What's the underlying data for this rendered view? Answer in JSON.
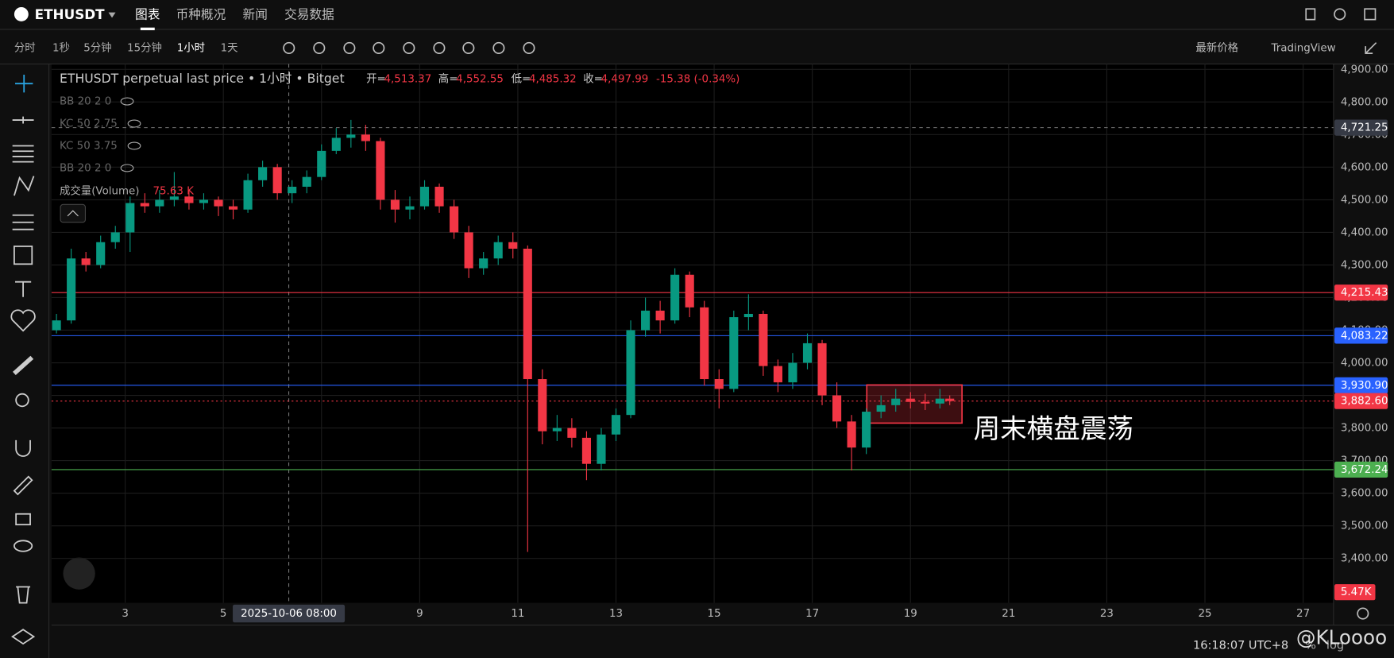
{
  "header": {
    "symbol": "ETHUSDT",
    "tabs": [
      "图表",
      "币种概况",
      "新闻",
      "交易数据"
    ]
  },
  "toolbar": {
    "intervals": [
      "分时",
      "1秒",
      "5分钟",
      "15分钟",
      "1小时",
      "1天"
    ],
    "price_source": "最新价格",
    "theme": "TradingView"
  },
  "legend": {
    "title": "ETHUSDT perpetual last price • 1小时 • Bitget",
    "ohlc": [
      {
        "label": "开=",
        "value": "4,513.37"
      },
      {
        "label": "高=",
        "value": "4,552.55"
      },
      {
        "label": "低=",
        "value": "4,485.32"
      },
      {
        "label": "收=",
        "value": "4,497.99"
      }
    ],
    "change": "-15.38 (-0.34%)",
    "indicators": [
      "BB 20 2 0",
      "KC 50 2.75",
      "KC 50 3.75",
      "BB 20 2 0"
    ],
    "volume_name": "成交量(Volume)",
    "volume_value": "75.63 K"
  },
  "chart_data": {
    "type": "candlestick",
    "x": [
      1.6,
      1.9,
      2.2,
      2.5,
      2.8,
      3.1,
      3.4,
      3.7,
      4.0,
      4.3,
      4.6,
      4.9,
      5.2,
      5.5,
      5.8,
      6.1,
      6.4,
      6.7,
      7.0,
      7.3,
      7.6,
      7.9,
      8.2,
      8.5,
      8.8,
      9.1,
      9.4,
      9.7,
      10.0,
      10.3,
      10.6,
      10.9,
      11.2,
      11.5,
      11.8,
      12.1,
      12.4,
      12.7,
      13.0,
      13.3,
      13.6,
      13.9,
      14.2,
      14.5,
      14.8,
      15.1,
      15.4,
      15.7,
      16.0,
      16.3,
      16.6,
      16.9,
      17.2,
      17.5,
      17.8,
      18.1,
      18.4,
      18.7,
      19.0,
      19.3,
      19.6,
      19.8
    ],
    "open": [
      4100,
      4130,
      4320,
      4300,
      4370,
      4400,
      4490,
      4480,
      4500,
      4510,
      4490,
      4500,
      4480,
      4470,
      4560,
      4600,
      4520,
      4540,
      4570,
      4650,
      4690,
      4700,
      4680,
      4500,
      4470,
      4480,
      4540,
      4480,
      4400,
      4290,
      4320,
      4370,
      4350,
      3950,
      3790,
      3800,
      3770,
      3690,
      3780,
      3840,
      4100,
      4160,
      4130,
      4270,
      4170,
      3950,
      3920,
      4140,
      4150,
      3990,
      3940,
      4000,
      4060,
      3900,
      3820,
      3740,
      3850,
      3870,
      3890,
      3880,
      3875,
      3890
    ],
    "high": [
      4150,
      4350,
      4340,
      4390,
      4420,
      4510,
      4520,
      4530,
      4585,
      4530,
      4520,
      4510,
      4500,
      4580,
      4620,
      4610,
      4560,
      4590,
      4670,
      4720,
      4745,
      4730,
      4690,
      4530,
      4510,
      4560,
      4550,
      4500,
      4420,
      4340,
      4390,
      4400,
      4360,
      3980,
      3840,
      3830,
      3790,
      3800,
      3860,
      4130,
      4200,
      4190,
      4290,
      4280,
      4190,
      3980,
      4160,
      4210,
      4160,
      4010,
      4030,
      4090,
      4070,
      3940,
      3840,
      3860,
      3900,
      3920,
      3910,
      3905,
      3920,
      3900
    ],
    "low": [
      4090,
      4120,
      4280,
      4290,
      4350,
      4340,
      4460,
      4460,
      4480,
      4470,
      4470,
      4450,
      4440,
      4460,
      4540,
      4500,
      4490,
      4520,
      4560,
      4640,
      4660,
      4650,
      4470,
      4430,
      4440,
      4470,
      4460,
      4380,
      4260,
      4270,
      4300,
      4320,
      3420,
      3750,
      3760,
      3740,
      3640,
      3670,
      3760,
      3830,
      4080,
      4090,
      4120,
      4140,
      3930,
      3860,
      3910,
      4100,
      3960,
      3910,
      3920,
      3980,
      3870,
      3800,
      3670,
      3720,
      3830,
      3850,
      3860,
      3855,
      3860,
      3870
    ],
    "close": [
      4130,
      4320,
      4300,
      4370,
      4400,
      4490,
      4480,
      4500,
      4510,
      4490,
      4500,
      4480,
      4470,
      4560,
      4600,
      4520,
      4540,
      4570,
      4650,
      4690,
      4700,
      4680,
      4500,
      4470,
      4480,
      4540,
      4480,
      4400,
      4290,
      4320,
      4370,
      4350,
      3950,
      3790,
      3800,
      3770,
      3690,
      3780,
      3840,
      4100,
      4160,
      4130,
      4270,
      4170,
      3950,
      3920,
      4140,
      4150,
      3990,
      3940,
      4000,
      4060,
      3900,
      3820,
      3740,
      3850,
      3870,
      3890,
      3880,
      3875,
      3890,
      3882.6
    ],
    "up_color": "#089981",
    "down_color": "#f23645",
    "xlim": [
      1.5,
      27.62
    ],
    "xticks": [
      3,
      5,
      7,
      9,
      11,
      13,
      15,
      17,
      19,
      21,
      23,
      25,
      27
    ],
    "ylim": [
      3263.6,
      4916.4
    ],
    "yticks": [
      {
        "value": 3400,
        "label": "3,400.00"
      },
      {
        "value": 3500,
        "label": "3,500.00"
      },
      {
        "value": 3600,
        "label": "3,600.00"
      },
      {
        "value": 3700,
        "label": "3,700.00"
      },
      {
        "value": 3800,
        "label": "3,800.00"
      },
      {
        "value": 3900,
        "label": "3,900.00"
      },
      {
        "value": 4000,
        "label": "4,000.00"
      },
      {
        "value": 4100,
        "label": "4,100.00"
      },
      {
        "value": 4200,
        "label": "4,200.00"
      },
      {
        "value": 4300,
        "label": "4,300.00"
      },
      {
        "value": 4400,
        "label": "4,400.00"
      },
      {
        "value": 4500,
        "label": "4,500.00"
      },
      {
        "value": 4600,
        "label": "4,600.00"
      },
      {
        "value": 4700,
        "label": "4,700.00"
      },
      {
        "value": 4800,
        "label": "4,800.00"
      },
      {
        "value": 4900,
        "label": "4,900.00"
      }
    ],
    "grid": true,
    "hlines": {
      "values": [
        4215.43,
        4083.22,
        3930.9,
        3882.6,
        3672.24
      ],
      "value_labels": [
        "4,215.43",
        "4,083.22",
        "3,930.90",
        "3,882.60",
        "3,672.24"
      ],
      "colors": [
        "#f23645",
        "#2962ff",
        "#2962ff",
        "#f23645",
        "#4caf50"
      ],
      "dotted": [
        false,
        false,
        false,
        true,
        false
      ]
    },
    "crosshair": {
      "y": 4721.25,
      "y_label": "4,721.25",
      "x": 6.333,
      "x_label": "2025-10-06   08:00"
    },
    "box": {
      "x": [
        18.11,
        20.05
      ],
      "y": [
        3815,
        3932
      ]
    },
    "annotation": "周末横盘震荡",
    "volume_label": "5.47K"
  },
  "footer": {
    "time": "16:18:07 UTC+8",
    "percent": "%",
    "log": "log",
    "watermark": "@KLoooo"
  }
}
